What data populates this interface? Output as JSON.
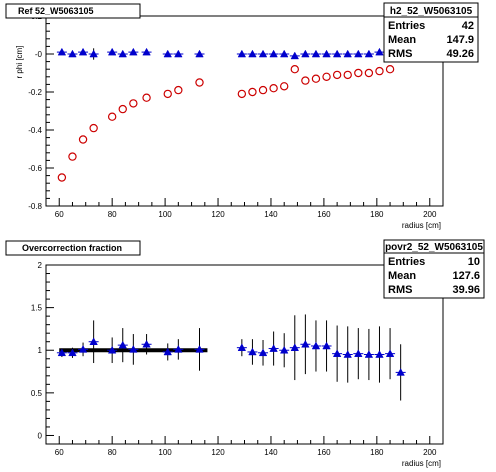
{
  "chart_data": [
    {
      "type": "scatter",
      "title": "Ref 52_W5063105",
      "xlabel": "radius [cm]",
      "ylabel": "r phi [cm]",
      "xlim": [
        55,
        205
      ],
      "ylim": [
        -0.8,
        0.2
      ],
      "x_ticks": [
        "60",
        "80",
        "100",
        "120",
        "140",
        "160",
        "180",
        "200"
      ],
      "y_ticks": [
        "-0.8",
        "-0.6",
        "-0.4",
        "-0.2",
        "-0",
        "0.2"
      ],
      "statbox": {
        "name": "h2_52_W5063105",
        "entries": "42",
        "mean": "147.9",
        "rms": "49.26"
      },
      "series": [
        {
          "marker": "triangle",
          "color": "#0000cc",
          "x": [
            61,
            65,
            69,
            73,
            80,
            84,
            88,
            93,
            101,
            105,
            113,
            129,
            133,
            137,
            141,
            145,
            149,
            153,
            157,
            161,
            165,
            169,
            173,
            177,
            181,
            185,
            189
          ],
          "y": [
            0.01,
            0.0,
            0.01,
            0.0,
            0.01,
            0.0,
            0.01,
            0.01,
            0.0,
            0.0,
            0.0,
            0.0,
            0.0,
            0.0,
            0.0,
            0.0,
            -0.01,
            0.0,
            0.0,
            0.0,
            0.0,
            0.0,
            0.0,
            0.0,
            0.01,
            0.02,
            0.09
          ],
          "yerr": [
            0.0,
            0.0,
            0.0,
            0.03,
            0.0,
            0.0,
            0.0,
            0.0,
            0.0,
            0.0,
            0.0,
            0.0,
            0.0,
            0.0,
            0.0,
            0.0,
            0.0,
            0.0,
            0.0,
            0.0,
            0.0,
            0.0,
            0.0,
            0.0,
            0.0,
            0.0,
            0.03
          ]
        },
        {
          "marker": "circle",
          "color": "#cc0000",
          "x": [
            61,
            65,
            69,
            73,
            80,
            84,
            88,
            93,
            101,
            105,
            113,
            129,
            133,
            137,
            141,
            145,
            149,
            153,
            157,
            161,
            165,
            169,
            173,
            177,
            181,
            185,
            189
          ],
          "y": [
            -0.65,
            -0.54,
            -0.45,
            -0.39,
            -0.33,
            -0.29,
            -0.26,
            -0.23,
            -0.21,
            -0.19,
            -0.15,
            -0.21,
            -0.2,
            -0.19,
            -0.18,
            -0.17,
            -0.08,
            -0.14,
            -0.13,
            -0.12,
            -0.11,
            -0.11,
            -0.1,
            -0.1,
            -0.09,
            -0.08,
            -0.01
          ]
        }
      ]
    },
    {
      "type": "scatter",
      "title": "Overcorrection fraction",
      "xlabel": "radius [cm]",
      "ylabel": "",
      "xlim": [
        55,
        205
      ],
      "ylim": [
        -0.1,
        2.0
      ],
      "x_ticks": [
        "60",
        "80",
        "100",
        "120",
        "140",
        "160",
        "180",
        "200"
      ],
      "y_ticks": [
        "0",
        "0.5",
        "1",
        "1.5",
        "2"
      ],
      "reference_line": {
        "y": 1.0,
        "x": [
          60,
          116
        ]
      },
      "statbox": {
        "name": "povr2_52_W5063105",
        "entries": "10",
        "mean": "127.6",
        "rms": "39.96"
      },
      "series": [
        {
          "marker": "triangle",
          "color": "#0000cc",
          "x": [
            61,
            65,
            69,
            73,
            80,
            84,
            88,
            93,
            101,
            105,
            113,
            129,
            133,
            137,
            141,
            145,
            149,
            153,
            157,
            161,
            165,
            169,
            173,
            177,
            181,
            185,
            189
          ],
          "y": [
            0.97,
            0.97,
            1.01,
            1.1,
            1.0,
            1.06,
            1.01,
            1.07,
            0.98,
            1.01,
            1.01,
            1.03,
            0.98,
            0.97,
            1.02,
            1.0,
            1.03,
            1.07,
            1.05,
            1.05,
            0.96,
            0.95,
            0.96,
            0.95,
            0.95,
            0.96,
            0.74
          ],
          "yerr": [
            0.05,
            0.06,
            0.08,
            0.25,
            0.15,
            0.2,
            0.18,
            0.12,
            0.1,
            0.12,
            0.25,
            0.1,
            0.15,
            0.15,
            0.2,
            0.2,
            0.38,
            0.35,
            0.3,
            0.3,
            0.33,
            0.33,
            0.3,
            0.3,
            0.33,
            0.3,
            0.33
          ]
        }
      ]
    }
  ]
}
